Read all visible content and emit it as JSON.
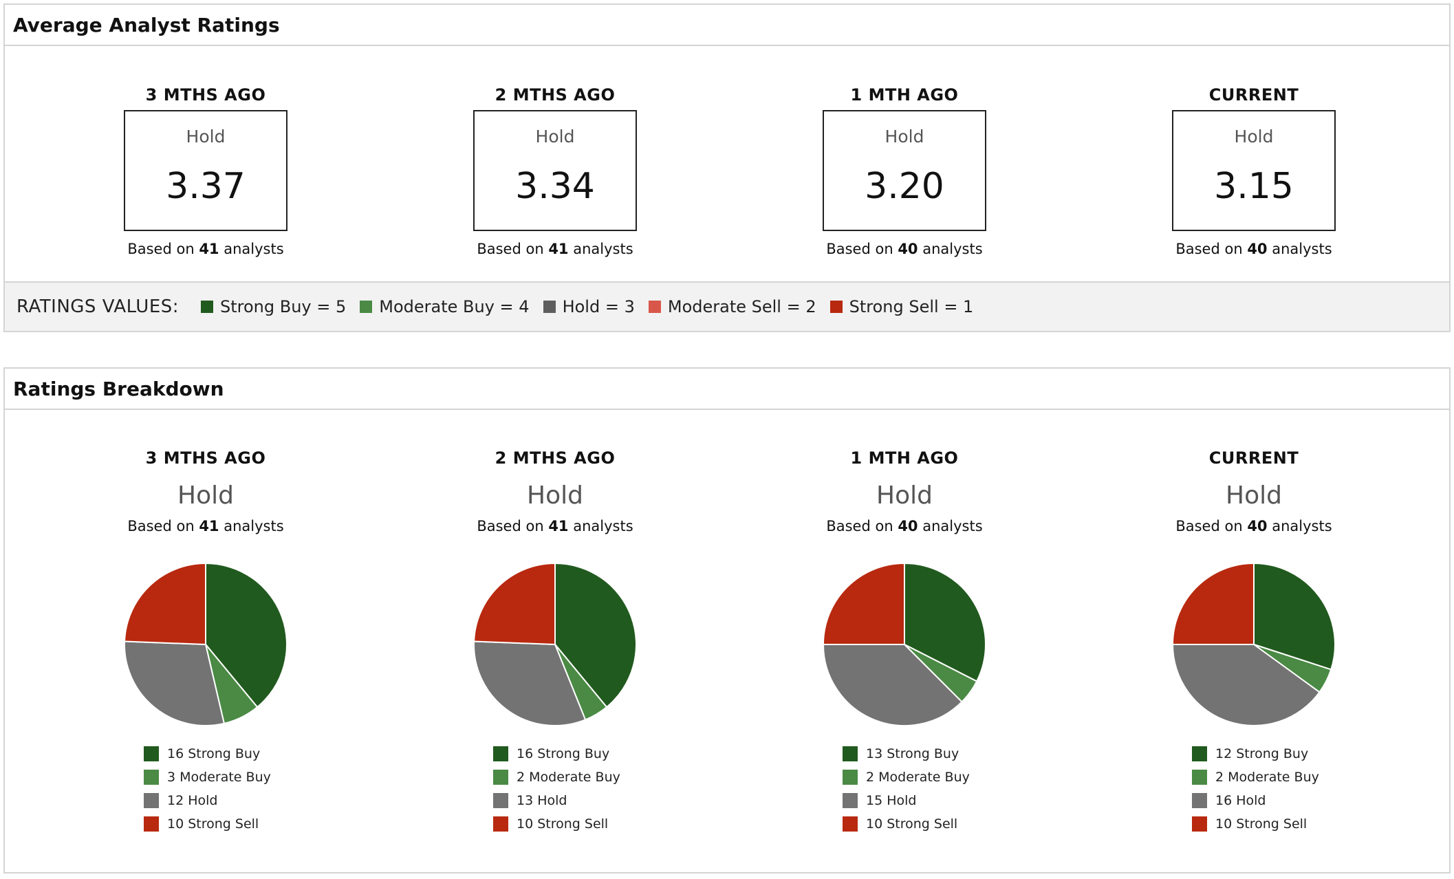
{
  "average_panel": {
    "title": "Average Analyst Ratings",
    "columns": [
      {
        "heading": "3 MTHS AGO",
        "label": "Hold",
        "value": "3.37",
        "based_prefix": "Based on ",
        "analysts": "41",
        "based_suffix": " analysts"
      },
      {
        "heading": "2 MTHS AGO",
        "label": "Hold",
        "value": "3.34",
        "based_prefix": "Based on ",
        "analysts": "41",
        "based_suffix": " analysts"
      },
      {
        "heading": "1 MTH AGO",
        "label": "Hold",
        "value": "3.20",
        "based_prefix": "Based on ",
        "analysts": "40",
        "based_suffix": " analysts"
      },
      {
        "heading": "CURRENT",
        "label": "Hold",
        "value": "3.15",
        "based_prefix": "Based on ",
        "analysts": "40",
        "based_suffix": " analysts"
      }
    ],
    "ratings_values": {
      "title": "RATINGS VALUES:",
      "items": [
        {
          "label": "Strong Buy = 5",
          "color": "#215a1e"
        },
        {
          "label": "Moderate Buy = 4",
          "color": "#4a8a44"
        },
        {
          "label": "Hold = 3",
          "color": "#5e5e5e"
        },
        {
          "label": "Moderate Sell = 2",
          "color": "#d9574a"
        },
        {
          "label": "Strong Sell = 1",
          "color": "#b8290f"
        }
      ]
    }
  },
  "breakdown_panel": {
    "title": "Ratings Breakdown",
    "columns": [
      {
        "heading": "3 MTHS AGO",
        "label": "Hold",
        "based_prefix": "Based on ",
        "analysts": "41",
        "based_suffix": " analysts",
        "legend": [
          "16 Strong Buy",
          "3 Moderate Buy",
          "12 Hold",
          "10 Strong Sell"
        ]
      },
      {
        "heading": "2 MTHS AGO",
        "label": "Hold",
        "based_prefix": "Based on ",
        "analysts": "41",
        "based_suffix": " analysts",
        "legend": [
          "16 Strong Buy",
          "2 Moderate Buy",
          "13 Hold",
          "10 Strong Sell"
        ]
      },
      {
        "heading": "1 MTH AGO",
        "label": "Hold",
        "based_prefix": "Based on ",
        "analysts": "40",
        "based_suffix": " analysts",
        "legend": [
          "13 Strong Buy",
          "2 Moderate Buy",
          "15 Hold",
          "10 Strong Sell"
        ]
      },
      {
        "heading": "CURRENT",
        "label": "Hold",
        "based_prefix": "Based on ",
        "analysts": "40",
        "based_suffix": " analysts",
        "legend": [
          "12 Strong Buy",
          "2 Moderate Buy",
          "16 Hold",
          "10 Strong Sell"
        ]
      }
    ]
  },
  "chart_data": [
    {
      "type": "pie",
      "title": "3 MTHS AGO",
      "categories": [
        "Strong Buy",
        "Moderate Buy",
        "Hold",
        "Strong Sell"
      ],
      "values": [
        16,
        3,
        12,
        10
      ],
      "colors": [
        "#215a1e",
        "#4a8a44",
        "#737373",
        "#b8290f"
      ]
    },
    {
      "type": "pie",
      "title": "2 MTHS AGO",
      "categories": [
        "Strong Buy",
        "Moderate Buy",
        "Hold",
        "Strong Sell"
      ],
      "values": [
        16,
        2,
        13,
        10
      ],
      "colors": [
        "#215a1e",
        "#4a8a44",
        "#737373",
        "#b8290f"
      ]
    },
    {
      "type": "pie",
      "title": "1 MTH AGO",
      "categories": [
        "Strong Buy",
        "Moderate Buy",
        "Hold",
        "Strong Sell"
      ],
      "values": [
        13,
        2,
        15,
        10
      ],
      "colors": [
        "#215a1e",
        "#4a8a44",
        "#737373",
        "#b8290f"
      ]
    },
    {
      "type": "pie",
      "title": "CURRENT",
      "categories": [
        "Strong Buy",
        "Moderate Buy",
        "Hold",
        "Strong Sell"
      ],
      "values": [
        12,
        2,
        16,
        10
      ],
      "colors": [
        "#215a1e",
        "#4a8a44",
        "#737373",
        "#b8290f"
      ]
    }
  ]
}
